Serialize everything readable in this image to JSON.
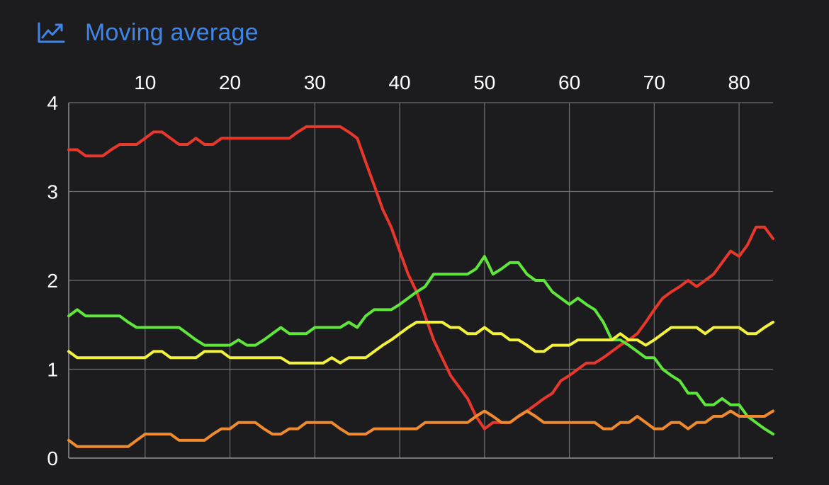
{
  "header": {
    "title": "Moving average",
    "icon": "line-chart-icon",
    "accent": "#3f86e8"
  },
  "chart_data": {
    "type": "line",
    "title": "Moving average",
    "xlabel": "",
    "ylabel": "",
    "xlim": [
      1,
      84
    ],
    "ylim": [
      0,
      4
    ],
    "x_ticks": [
      10,
      20,
      30,
      40,
      50,
      60,
      70,
      80
    ],
    "y_ticks": [
      0,
      1,
      2,
      3,
      4
    ],
    "x_axis_position": "top",
    "grid": true,
    "legend": "none",
    "series": [
      {
        "color": "#e8372b",
        "points": [
          [
            1,
            3.47
          ],
          [
            2,
            3.47
          ],
          [
            3,
            3.4
          ],
          [
            4,
            3.4
          ],
          [
            5,
            3.4
          ],
          [
            6,
            3.47
          ],
          [
            7,
            3.53
          ],
          [
            8,
            3.53
          ],
          [
            9,
            3.53
          ],
          [
            10,
            3.6
          ],
          [
            11,
            3.67
          ],
          [
            12,
            3.67
          ],
          [
            13,
            3.6
          ],
          [
            14,
            3.53
          ],
          [
            15,
            3.53
          ],
          [
            16,
            3.6
          ],
          [
            17,
            3.53
          ],
          [
            18,
            3.53
          ],
          [
            19,
            3.6
          ],
          [
            20,
            3.6
          ],
          [
            25,
            3.6
          ],
          [
            26,
            3.6
          ],
          [
            27,
            3.6
          ],
          [
            28,
            3.67
          ],
          [
            29,
            3.73
          ],
          [
            30,
            3.73
          ],
          [
            32,
            3.73
          ],
          [
            33,
            3.73
          ],
          [
            34,
            3.67
          ],
          [
            35,
            3.6
          ],
          [
            36,
            3.33
          ],
          [
            37,
            3.07
          ],
          [
            38,
            2.8
          ],
          [
            39,
            2.6
          ],
          [
            40,
            2.33
          ],
          [
            41,
            2.07
          ],
          [
            42,
            1.87
          ],
          [
            43,
            1.6
          ],
          [
            44,
            1.33
          ],
          [
            45,
            1.13
          ],
          [
            46,
            0.93
          ],
          [
            47,
            0.8
          ],
          [
            48,
            0.67
          ],
          [
            49,
            0.47
          ],
          [
            50,
            0.33
          ],
          [
            51,
            0.4
          ],
          [
            52,
            0.4
          ],
          [
            53,
            0.4
          ],
          [
            54,
            0.47
          ],
          [
            55,
            0.53
          ],
          [
            56,
            0.6
          ],
          [
            57,
            0.67
          ],
          [
            58,
            0.73
          ],
          [
            59,
            0.87
          ],
          [
            60,
            0.93
          ],
          [
            61,
            1.0
          ],
          [
            62,
            1.07
          ],
          [
            63,
            1.07
          ],
          [
            64,
            1.13
          ],
          [
            65,
            1.2
          ],
          [
            66,
            1.27
          ],
          [
            67,
            1.33
          ],
          [
            68,
            1.4
          ],
          [
            69,
            1.53
          ],
          [
            70,
            1.67
          ],
          [
            71,
            1.8
          ],
          [
            72,
            1.87
          ],
          [
            73,
            1.93
          ],
          [
            74,
            2.0
          ],
          [
            75,
            1.93
          ],
          [
            76,
            2.0
          ],
          [
            77,
            2.07
          ],
          [
            78,
            2.2
          ],
          [
            79,
            2.33
          ],
          [
            80,
            2.27
          ],
          [
            81,
            2.4
          ],
          [
            82,
            2.6
          ],
          [
            83,
            2.6
          ],
          [
            84,
            2.47
          ]
        ]
      },
      {
        "color": "#5fe63b",
        "points": [
          [
            1,
            1.6
          ],
          [
            2,
            1.67
          ],
          [
            3,
            1.6
          ],
          [
            4,
            1.6
          ],
          [
            7,
            1.6
          ],
          [
            8,
            1.53
          ],
          [
            9,
            1.47
          ],
          [
            10,
            1.47
          ],
          [
            14,
            1.47
          ],
          [
            15,
            1.4
          ],
          [
            16,
            1.33
          ],
          [
            17,
            1.27
          ],
          [
            18,
            1.27
          ],
          [
            20,
            1.27
          ],
          [
            21,
            1.33
          ],
          [
            22,
            1.27
          ],
          [
            23,
            1.27
          ],
          [
            24,
            1.33
          ],
          [
            25,
            1.4
          ],
          [
            26,
            1.47
          ],
          [
            27,
            1.4
          ],
          [
            28,
            1.4
          ],
          [
            29,
            1.4
          ],
          [
            30,
            1.47
          ],
          [
            33,
            1.47
          ],
          [
            34,
            1.53
          ],
          [
            35,
            1.47
          ],
          [
            36,
            1.6
          ],
          [
            37,
            1.67
          ],
          [
            38,
            1.67
          ],
          [
            39,
            1.67
          ],
          [
            40,
            1.73
          ],
          [
            41,
            1.8
          ],
          [
            42,
            1.87
          ],
          [
            43,
            1.93
          ],
          [
            44,
            2.07
          ],
          [
            45,
            2.07
          ],
          [
            46,
            2.07
          ],
          [
            47,
            2.07
          ],
          [
            48,
            2.07
          ],
          [
            49,
            2.13
          ],
          [
            50,
            2.27
          ],
          [
            51,
            2.07
          ],
          [
            52,
            2.13
          ],
          [
            53,
            2.2
          ],
          [
            54,
            2.2
          ],
          [
            55,
            2.07
          ],
          [
            56,
            2.0
          ],
          [
            57,
            2.0
          ],
          [
            58,
            1.87
          ],
          [
            59,
            1.8
          ],
          [
            60,
            1.73
          ],
          [
            61,
            1.8
          ],
          [
            62,
            1.73
          ],
          [
            63,
            1.67
          ],
          [
            64,
            1.53
          ],
          [
            65,
            1.33
          ],
          [
            66,
            1.33
          ],
          [
            67,
            1.27
          ],
          [
            68,
            1.2
          ],
          [
            69,
            1.13
          ],
          [
            70,
            1.13
          ],
          [
            71,
            1.0
          ],
          [
            72,
            0.93
          ],
          [
            73,
            0.87
          ],
          [
            74,
            0.73
          ],
          [
            75,
            0.73
          ],
          [
            76,
            0.6
          ],
          [
            77,
            0.6
          ],
          [
            78,
            0.67
          ],
          [
            79,
            0.6
          ],
          [
            80,
            0.6
          ],
          [
            81,
            0.47
          ],
          [
            82,
            0.4
          ],
          [
            83,
            0.33
          ],
          [
            84,
            0.27
          ]
        ]
      },
      {
        "color": "#f2f23c",
        "points": [
          [
            1,
            1.2
          ],
          [
            2,
            1.13
          ],
          [
            10,
            1.13
          ],
          [
            11,
            1.2
          ],
          [
            12,
            1.2
          ],
          [
            13,
            1.13
          ],
          [
            16,
            1.13
          ],
          [
            17,
            1.2
          ],
          [
            18,
            1.2
          ],
          [
            19,
            1.2
          ],
          [
            20,
            1.13
          ],
          [
            26,
            1.13
          ],
          [
            27,
            1.07
          ],
          [
            31,
            1.07
          ],
          [
            32,
            1.13
          ],
          [
            33,
            1.07
          ],
          [
            34,
            1.13
          ],
          [
            35,
            1.13
          ],
          [
            36,
            1.13
          ],
          [
            37,
            1.2
          ],
          [
            38,
            1.27
          ],
          [
            39,
            1.33
          ],
          [
            40,
            1.4
          ],
          [
            41,
            1.47
          ],
          [
            42,
            1.53
          ],
          [
            45,
            1.53
          ],
          [
            46,
            1.47
          ],
          [
            47,
            1.47
          ],
          [
            48,
            1.4
          ],
          [
            49,
            1.4
          ],
          [
            50,
            1.47
          ],
          [
            51,
            1.4
          ],
          [
            52,
            1.4
          ],
          [
            53,
            1.33
          ],
          [
            54,
            1.33
          ],
          [
            55,
            1.27
          ],
          [
            56,
            1.2
          ],
          [
            57,
            1.2
          ],
          [
            58,
            1.27
          ],
          [
            59,
            1.27
          ],
          [
            60,
            1.27
          ],
          [
            61,
            1.33
          ],
          [
            64,
            1.33
          ],
          [
            65,
            1.33
          ],
          [
            66,
            1.4
          ],
          [
            67,
            1.33
          ],
          [
            68,
            1.33
          ],
          [
            69,
            1.27
          ],
          [
            70,
            1.33
          ],
          [
            71,
            1.4
          ],
          [
            72,
            1.47
          ],
          [
            75,
            1.47
          ],
          [
            76,
            1.4
          ],
          [
            77,
            1.47
          ],
          [
            80,
            1.47
          ],
          [
            81,
            1.4
          ],
          [
            82,
            1.4
          ],
          [
            83,
            1.47
          ],
          [
            84,
            1.53
          ]
        ]
      },
      {
        "color": "#ef8a2e",
        "points": [
          [
            1,
            0.2
          ],
          [
            2,
            0.13
          ],
          [
            7,
            0.13
          ],
          [
            8,
            0.13
          ],
          [
            9,
            0.2
          ],
          [
            10,
            0.27
          ],
          [
            13,
            0.27
          ],
          [
            14,
            0.2
          ],
          [
            17,
            0.2
          ],
          [
            18,
            0.27
          ],
          [
            19,
            0.33
          ],
          [
            20,
            0.33
          ],
          [
            21,
            0.4
          ],
          [
            23,
            0.4
          ],
          [
            24,
            0.33
          ],
          [
            25,
            0.27
          ],
          [
            26,
            0.27
          ],
          [
            27,
            0.33
          ],
          [
            28,
            0.33
          ],
          [
            29,
            0.4
          ],
          [
            32,
            0.4
          ],
          [
            33,
            0.33
          ],
          [
            34,
            0.27
          ],
          [
            35,
            0.27
          ],
          [
            36,
            0.27
          ],
          [
            37,
            0.33
          ],
          [
            42,
            0.33
          ],
          [
            43,
            0.4
          ],
          [
            48,
            0.4
          ],
          [
            49,
            0.47
          ],
          [
            50,
            0.53
          ],
          [
            51,
            0.47
          ],
          [
            52,
            0.4
          ],
          [
            53,
            0.4
          ],
          [
            54,
            0.47
          ],
          [
            55,
            0.53
          ],
          [
            56,
            0.47
          ],
          [
            57,
            0.4
          ],
          [
            62,
            0.4
          ],
          [
            63,
            0.4
          ],
          [
            64,
            0.33
          ],
          [
            65,
            0.33
          ],
          [
            66,
            0.4
          ],
          [
            67,
            0.4
          ],
          [
            68,
            0.47
          ],
          [
            69,
            0.4
          ],
          [
            70,
            0.33
          ],
          [
            71,
            0.33
          ],
          [
            72,
            0.4
          ],
          [
            73,
            0.4
          ],
          [
            74,
            0.33
          ],
          [
            75,
            0.4
          ],
          [
            76,
            0.4
          ],
          [
            77,
            0.47
          ],
          [
            78,
            0.47
          ],
          [
            79,
            0.53
          ],
          [
            80,
            0.47
          ],
          [
            81,
            0.47
          ],
          [
            82,
            0.47
          ],
          [
            83,
            0.47
          ],
          [
            84,
            0.53
          ]
        ]
      }
    ]
  }
}
